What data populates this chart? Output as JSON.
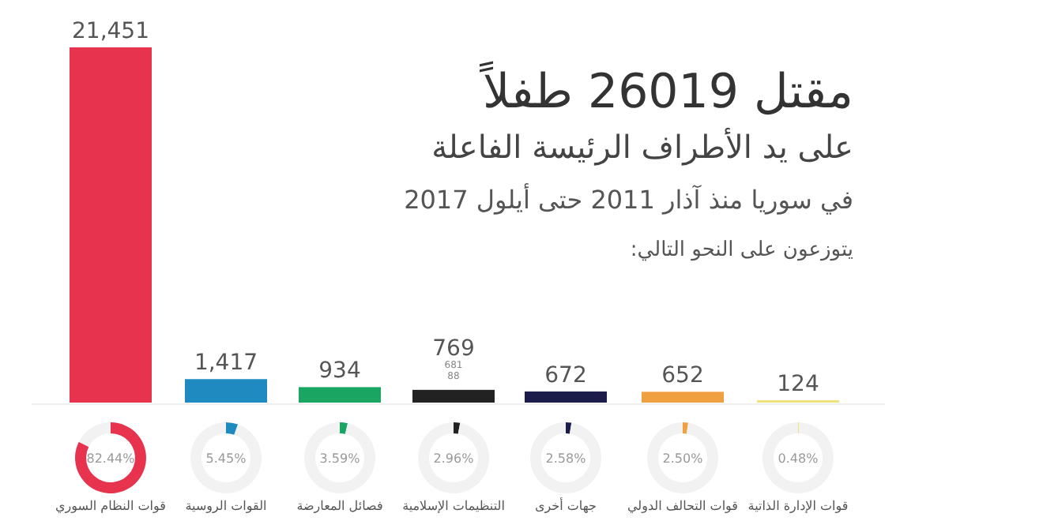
{
  "chart_data": [
    {
      "type": "bar",
      "title": "مقتل 26019 طفلاً",
      "subtitle": "على يد الأطراف الرئيسة الفاعلة",
      "annotations": [
        "في سوريا منذ آذار 2011 حتى أيلول 2017",
        "يتوزعون على النحو التالي:",
        "681",
        "88"
      ],
      "categories": [
        "قوات النظام السوري",
        "القوات الروسية",
        "فصائل المعارضة",
        "التنظيمات الإسلامية",
        "جهات أخرى",
        "قوات التحالف الدولي",
        "قوات الإدارة الذاتية"
      ],
      "values": [
        21451,
        1417,
        934,
        769,
        672,
        652,
        124
      ],
      "colors": [
        "#e8334f",
        "#1f8ac0",
        "#1aa562",
        "#222222",
        "#1c1c4a",
        "#f0a040",
        "#f0e27a"
      ],
      "value_labels": [
        "21,451",
        "1,417",
        "934",
        "769",
        "672",
        "652",
        "124"
      ]
    },
    {
      "type": "donut",
      "categories": [
        null,
        null
      ],
      "values": [
        82.44,
        17.56
      ],
      "colors": [
        "#e8334f",
        "#f2f2f2"
      ],
      "title": "82.44%"
    },
    {
      "type": "donut",
      "categories": [
        null,
        null
      ],
      "values": [
        5.45,
        94.55
      ],
      "colors": [
        "#1f8ac0",
        "#f2f2f2"
      ],
      "title": "5.45%"
    },
    {
      "type": "donut",
      "categories": [
        null,
        null
      ],
      "values": [
        3.59,
        96.41
      ],
      "colors": [
        "#1aa562",
        "#f2f2f2"
      ],
      "title": "3.59%"
    },
    {
      "type": "donut",
      "categories": [
        null,
        null
      ],
      "values": [
        2.96,
        97.04
      ],
      "colors": [
        "#222222",
        "#f2f2f2"
      ],
      "title": "2.96%"
    },
    {
      "type": "donut",
      "categories": [
        null,
        null
      ],
      "values": [
        2.58,
        97.42
      ],
      "colors": [
        "#1c1c4a",
        "#f2f2f2"
      ],
      "title": "2.58%"
    },
    {
      "type": "donut",
      "categories": [
        null,
        null
      ],
      "values": [
        2.5,
        97.5
      ],
      "colors": [
        "#f0a040",
        "#f2f2f2"
      ],
      "title": "2.50%"
    },
    {
      "type": "donut",
      "categories": [
        null,
        null
      ],
      "values": [
        0.48,
        99.52
      ],
      "colors": [
        "#f0e27a",
        "#f2f2f2"
      ],
      "title": "0.48%"
    }
  ]
}
